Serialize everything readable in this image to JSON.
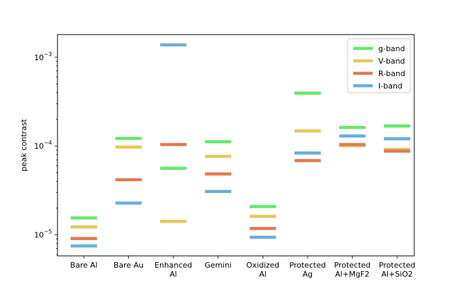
{
  "chart_data": {
    "type": "scatter",
    "ylabel": "peak contrast",
    "yscale": "log",
    "ylim": [
      5.8e-06,
      0.0018
    ],
    "y_ticks": [
      {
        "value": 1e-05,
        "base": "10",
        "exp": "−5"
      },
      {
        "value": 0.0001,
        "base": "10",
        "exp": "−4"
      },
      {
        "value": 0.001,
        "base": "10",
        "exp": "−3"
      }
    ],
    "categories": [
      [
        "Bare Al"
      ],
      [
        "Bare Au"
      ],
      [
        "Enhanced",
        "Al"
      ],
      [
        "Gemini"
      ],
      [
        "Oxidized",
        "Al"
      ],
      [
        "Protected",
        "Ag"
      ],
      [
        "Protected",
        "Al+MgF2"
      ],
      [
        "Protected",
        "Al+SiO2"
      ]
    ],
    "legend_position": "top-right",
    "series": [
      {
        "name": "g-band",
        "color": "#66e86d",
        "values": [
          1.55e-05,
          0.000122,
          5.6e-05,
          0.000112,
          2.08e-05,
          0.000395,
          0.000162,
          0.000168
        ]
      },
      {
        "name": "V-band",
        "color": "#e5c85a",
        "values": [
          1.23e-05,
          9.75e-05,
          1.42e-05,
          7.65e-05,
          1.62e-05,
          0.000148,
          0.000101,
          9.15e-05
        ]
      },
      {
        "name": "R-band",
        "color": "#e07a50",
        "values": [
          9.1e-06,
          4.18e-05,
          0.000104,
          4.85e-05,
          1.18e-05,
          6.85e-05,
          0.000104,
          8.78e-05
        ]
      },
      {
        "name": "I-band",
        "color": "#6aaedb",
        "values": [
          7.5e-06,
          2.28e-05,
          0.00138,
          3.08e-05,
          9.4e-06,
          8.35e-05,
          0.00013,
          0.000121
        ]
      }
    ]
  }
}
